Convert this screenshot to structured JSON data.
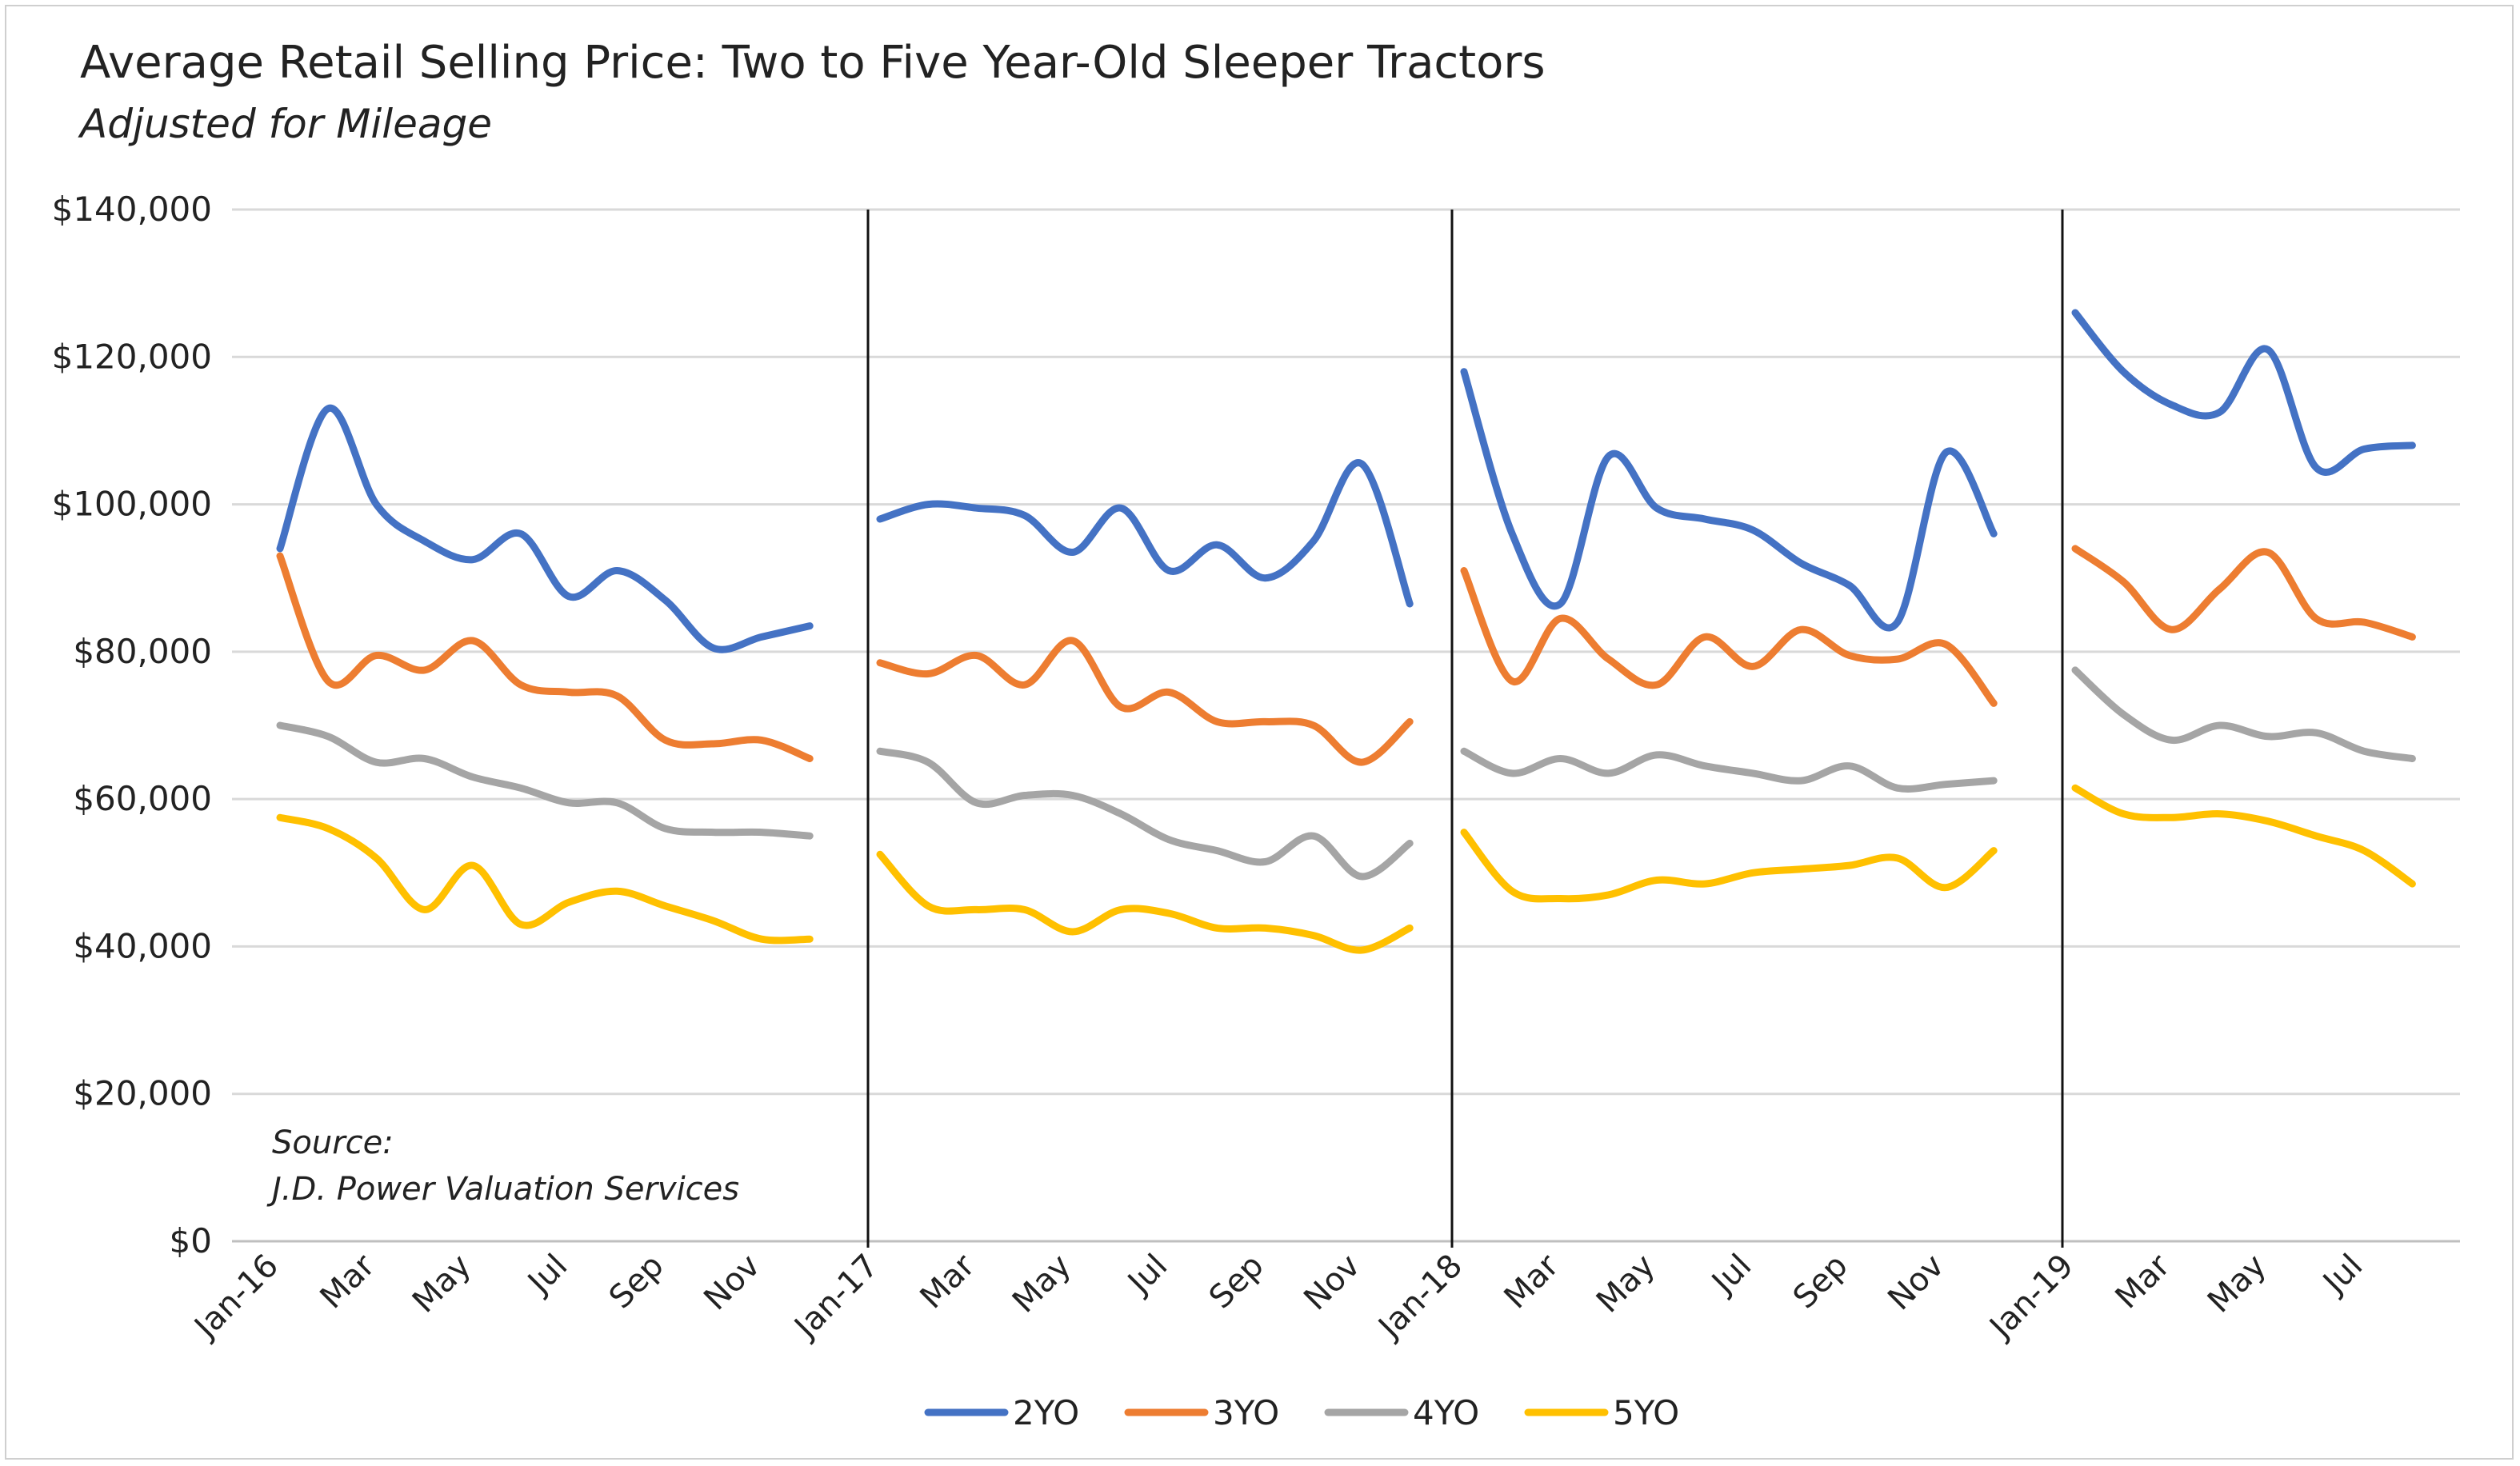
{
  "chart_data": {
    "type": "line",
    "title": "Average Retail Selling Price: Two to Five Year-Old Sleeper Tractors",
    "subtitle": "Adjusted for Mileage",
    "xlabel": "",
    "ylabel": "",
    "ylim": [
      0,
      140000
    ],
    "y_ticks": [
      0,
      20000,
      40000,
      60000,
      80000,
      100000,
      120000,
      140000
    ],
    "y_tick_labels": [
      "$0",
      "$20,000",
      "$40,000",
      "$60,000",
      "$80,000",
      "$100,000",
      "$120,000",
      "$140,000"
    ],
    "x_tick_labels": [
      "Jan-16",
      "Mar",
      "May",
      "Jul",
      "Sep",
      "Nov",
      "Jan-17",
      "Mar",
      "May",
      "Jul",
      "Sep",
      "Nov",
      "Jan-18",
      "Mar",
      "May",
      "Jul",
      "Sep",
      "Nov",
      "Jan-19",
      "Mar",
      "May",
      "Jul"
    ],
    "grid": "horizontal",
    "legend_position": "bottom",
    "year_separators": true,
    "annotation": [
      "Source:",
      "J.D. Power Valuation Services"
    ],
    "segments": [
      {
        "start": "Jan-16",
        "months": 12
      },
      {
        "start": "Jan-17",
        "months": 12
      },
      {
        "start": "Jan-18",
        "months": 12
      },
      {
        "start": "Jan-19",
        "months": 8
      }
    ],
    "series": [
      {
        "name": "2YO",
        "color": "#4472C4",
        "values": [
          [
            94000,
            113000,
            100000,
            95000,
            92500,
            96000,
            87500,
            91000,
            87000,
            80500,
            82000,
            83500
          ],
          [
            98000,
            100000,
            99500,
            98500,
            93500,
            99500,
            91000,
            94500,
            90000,
            95000,
            105500,
            86500
          ],
          [
            118000,
            96000,
            86500,
            106500,
            99500,
            98000,
            96500,
            92000,
            89000,
            84000,
            107000,
            96000
          ],
          [
            126000,
            118000,
            113500,
            112500,
            121000,
            105000,
            107500,
            108000
          ]
        ]
      },
      {
        "name": "3YO",
        "color": "#ED7D31",
        "values": [
          [
            93000,
            76000,
            79500,
            77500,
            81500,
            75500,
            74500,
            74000,
            68000,
            67500,
            68000,
            65500
          ],
          [
            78500,
            77000,
            79500,
            75500,
            81500,
            72500,
            74500,
            70500,
            70500,
            70000,
            65000,
            70500
          ],
          [
            91000,
            76000,
            84500,
            79000,
            75500,
            82000,
            78000,
            83000,
            79500,
            79000,
            81000,
            73000
          ],
          [
            94000,
            89500,
            83000,
            88500,
            93500,
            84500,
            84000,
            82000
          ]
        ]
      },
      {
        "name": "4YO",
        "color": "#A5A5A5",
        "values": [
          [
            70000,
            68500,
            65000,
            65500,
            63000,
            61500,
            59500,
            59500,
            56000,
            55500,
            55500,
            55000
          ],
          [
            66500,
            65000,
            59500,
            60500,
            60500,
            58000,
            54500,
            53000,
            51500,
            55000,
            49500,
            54000
          ],
          [
            66500,
            63500,
            65500,
            63500,
            66000,
            64500,
            63500,
            62500,
            64500,
            61500,
            62000,
            62500
          ],
          [
            77500,
            71500,
            68000,
            70000,
            68500,
            69000,
            66500,
            65500
          ]
        ]
      },
      {
        "name": "5YO",
        "color": "#FFC000",
        "values": [
          [
            57500,
            56000,
            52000,
            45000,
            51000,
            43000,
            46000,
            47500,
            45500,
            43500,
            41000,
            41000
          ],
          [
            52500,
            45500,
            45000,
            45000,
            42000,
            45000,
            44500,
            42500,
            42500,
            41500,
            39500,
            42500
          ],
          [
            55500,
            47500,
            46500,
            47000,
            49000,
            48500,
            50000,
            50500,
            51000,
            52000,
            48000,
            53000
          ],
          [
            61500,
            58000,
            57500,
            58000,
            57000,
            55000,
            53000,
            48500
          ]
        ]
      }
    ]
  }
}
